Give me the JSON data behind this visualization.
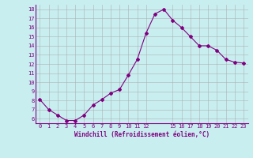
{
  "x": [
    0,
    1,
    2,
    3,
    4,
    5,
    6,
    7,
    8,
    9,
    10,
    11,
    12,
    13,
    14,
    15,
    16,
    17,
    18,
    19,
    20,
    21,
    22,
    23
  ],
  "y": [
    8.1,
    7.0,
    6.4,
    5.8,
    5.8,
    6.4,
    7.5,
    8.1,
    8.8,
    9.2,
    10.8,
    12.5,
    15.4,
    17.5,
    18.0,
    16.8,
    16.0,
    15.0,
    14.0,
    14.0,
    13.5,
    12.5,
    12.2,
    12.1
  ],
  "line_color": "#800080",
  "marker": "D",
  "marker_size": 2.0,
  "bg_color": "#c8eef0",
  "grid_color": "#aaaaaa",
  "xlabel": "Windchill (Refroidissement éolien,°C)",
  "xlabel_color": "#800080",
  "tick_color": "#800080",
  "ylim": [
    5.5,
    18.5
  ],
  "xlim": [
    -0.5,
    23.5
  ],
  "yticks": [
    6,
    7,
    8,
    9,
    10,
    11,
    12,
    13,
    14,
    15,
    16,
    17,
    18
  ],
  "xtick_positions": [
    0,
    1,
    2,
    3,
    4,
    5,
    6,
    7,
    8,
    9,
    10,
    11,
    12,
    15,
    16,
    17,
    18,
    19,
    20,
    21,
    22,
    23
  ],
  "xtick_labels": [
    "0",
    "1",
    "2",
    "3",
    "4",
    "5",
    "6",
    "7",
    "8",
    "9",
    "10",
    "11",
    "12",
    "15",
    "16",
    "17",
    "18",
    "19",
    "20",
    "21",
    "22",
    "23"
  ]
}
